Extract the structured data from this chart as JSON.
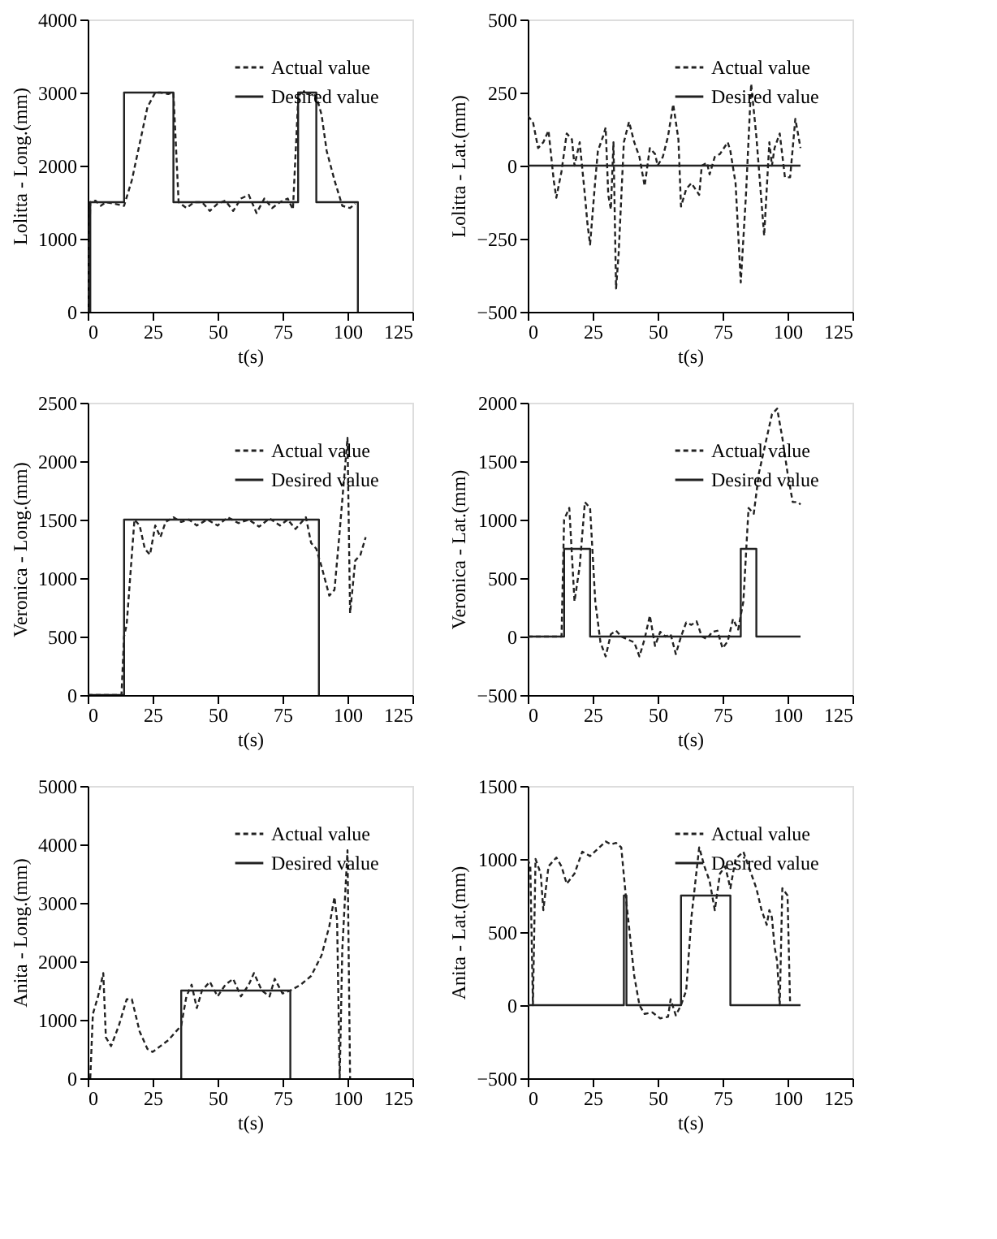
{
  "chart_data": [
    {
      "type": "line",
      "xlabel": "t(s)",
      "ylabel": "Lolitta - Long.(mm)",
      "xlim": [
        0,
        125
      ],
      "xticks": [
        0,
        25,
        50,
        75,
        100,
        125
      ],
      "ylim": [
        0,
        4000
      ],
      "yticks": [
        0,
        1000,
        2000,
        3000,
        4000
      ],
      "legend": "top right",
      "series": [
        {
          "name": "Actual value",
          "color": "#222222",
          "line_style": "dashed",
          "x": [
            0,
            1,
            3,
            5,
            7,
            10,
            14,
            17,
            20,
            23,
            26,
            28,
            31,
            33,
            35,
            38,
            41,
            44,
            47,
            50,
            53,
            56,
            59,
            62,
            65,
            68,
            71,
            74,
            77,
            79,
            81,
            82,
            84,
            86,
            88,
            90,
            92,
            95,
            98,
            101,
            103
          ],
          "values": [
            0,
            1500,
            1520,
            1450,
            1500,
            1480,
            1450,
            1800,
            2300,
            2800,
            3000,
            3000,
            2980,
            3000,
            1500,
            1420,
            1500,
            1500,
            1380,
            1480,
            1520,
            1380,
            1550,
            1600,
            1350,
            1550,
            1420,
            1500,
            1550,
            1400,
            2900,
            3000,
            2980,
            2990,
            2950,
            2700,
            2200,
            1800,
            1450,
            1420,
            1480
          ]
        },
        {
          "name": "Desired value",
          "color": "#222222",
          "line_style": "solid",
          "x": [
            1,
            1,
            14,
            14,
            33,
            33,
            81,
            81,
            88,
            88,
            104,
            104
          ],
          "values": [
            0,
            1500,
            1500,
            3000,
            3000,
            1500,
            1500,
            3000,
            3000,
            1500,
            1500,
            0
          ]
        }
      ]
    },
    {
      "type": "line",
      "xlabel": "t(s)",
      "ylabel": "Lolitta - Lat.(mm)",
      "xlim": [
        0,
        125
      ],
      "xticks": [
        0,
        25,
        50,
        75,
        100,
        125
      ],
      "ylim": [
        -500,
        500
      ],
      "yticks": [
        -500,
        -250,
        0,
        250,
        500
      ],
      "legend": "top right",
      "series": [
        {
          "name": "Actual value",
          "color": "#222222",
          "line_style": "dashed",
          "x": [
            0,
            2,
            4,
            6,
            8,
            10,
            11,
            13,
            15,
            17,
            18,
            20,
            22,
            23,
            24,
            26,
            27,
            29,
            30,
            31,
            32,
            33,
            34,
            35,
            37,
            39,
            41,
            43,
            45,
            47,
            49,
            50,
            52,
            54,
            56,
            58,
            59,
            61,
            63,
            66,
            67,
            69,
            70,
            72,
            74,
            77,
            78,
            80,
            82,
            84,
            86,
            88,
            91,
            93,
            94,
            95,
            97,
            99,
            101,
            103,
            105
          ],
          "values": [
            170,
            150,
            60,
            80,
            120,
            -50,
            -110,
            -20,
            110,
            90,
            0,
            80,
            -100,
            -200,
            -270,
            -50,
            50,
            100,
            130,
            -100,
            -150,
            80,
            -420,
            -300,
            80,
            150,
            80,
            30,
            -70,
            60,
            40,
            0,
            30,
            100,
            210,
            90,
            -140,
            -80,
            -60,
            -100,
            0,
            10,
            -30,
            30,
            40,
            80,
            50,
            -60,
            -400,
            -100,
            280,
            100,
            -240,
            80,
            0,
            60,
            110,
            -40,
            -40,
            160,
            60
          ]
        },
        {
          "name": "Desired value",
          "color": "#222222",
          "line_style": "solid",
          "x": [
            0,
            105
          ],
          "values": [
            0,
            0
          ]
        }
      ]
    },
    {
      "type": "line",
      "xlabel": "t(s)",
      "ylabel": "Veronica - Long.(mm)",
      "xlim": [
        0,
        125
      ],
      "xticks": [
        0,
        25,
        50,
        75,
        100,
        125
      ],
      "ylim": [
        0,
        2500
      ],
      "yticks": [
        0,
        500,
        1000,
        1500,
        2000,
        2500
      ],
      "legend": "top right",
      "series": [
        {
          "name": "Actual value",
          "color": "#222222",
          "line_style": "dashed",
          "x": [
            0,
            13,
            14,
            15,
            17,
            18,
            20,
            22,
            24,
            26,
            28,
            30,
            33,
            36,
            39,
            42,
            46,
            50,
            54,
            58,
            62,
            66,
            70,
            74,
            77,
            80,
            84,
            86,
            88,
            90,
            93,
            95,
            97,
            100,
            101,
            103,
            105,
            107
          ],
          "values": [
            0,
            0,
            500,
            600,
            1200,
            1500,
            1450,
            1250,
            1200,
            1450,
            1350,
            1480,
            1520,
            1480,
            1500,
            1450,
            1500,
            1450,
            1520,
            1470,
            1500,
            1440,
            1510,
            1450,
            1500,
            1420,
            1520,
            1300,
            1250,
            1100,
            850,
            900,
            1400,
            2200,
            700,
            1150,
            1200,
            1350
          ]
        },
        {
          "name": "Desired value",
          "color": "#222222",
          "line_style": "solid",
          "x": [
            0,
            14,
            14,
            89,
            89
          ],
          "values": [
            0,
            0,
            1500,
            1500,
            0
          ]
        }
      ]
    },
    {
      "type": "line",
      "xlabel": "t(s)",
      "ylabel": "Veronica - Lat.(mm)",
      "xlim": [
        0,
        125
      ],
      "xticks": [
        0,
        25,
        50,
        75,
        100,
        125
      ],
      "ylim": [
        -500,
        2000
      ],
      "yticks": [
        -500,
        0,
        500,
        1000,
        1500,
        2000
      ],
      "legend": "top right",
      "series": [
        {
          "name": "Actual value",
          "color": "#222222",
          "line_style": "dashed",
          "x": [
            0,
            13,
            14,
            16,
            18,
            20,
            22,
            24,
            26,
            28,
            30,
            32,
            34,
            36,
            38,
            41,
            43,
            45,
            47,
            49,
            51,
            53,
            55,
            57,
            59,
            61,
            63,
            65,
            67,
            69,
            71,
            73,
            75,
            77,
            79,
            81,
            83,
            85,
            87,
            89,
            91,
            94,
            96,
            98,
            100,
            102,
            104,
            105
          ],
          "values": [
            0,
            0,
            1000,
            1100,
            300,
            600,
            1150,
            1100,
            300,
            -50,
            -170,
            20,
            50,
            0,
            -20,
            -50,
            -170,
            -20,
            180,
            -80,
            40,
            0,
            20,
            -150,
            0,
            120,
            100,
            130,
            0,
            -20,
            40,
            50,
            -100,
            -40,
            150,
            60,
            300,
            1100,
            1050,
            1400,
            1600,
            1900,
            1950,
            1700,
            1400,
            1150,
            1150,
            1130
          ]
        },
        {
          "name": "Desired value",
          "color": "#222222",
          "line_style": "solid",
          "x": [
            0,
            14,
            14,
            24,
            24,
            82,
            82,
            88,
            88,
            105
          ],
          "values": [
            0,
            0,
            750,
            750,
            0,
            0,
            750,
            750,
            0,
            0
          ]
        }
      ]
    },
    {
      "type": "line",
      "xlabel": "t(s)",
      "ylabel": "Anita - Long.(mm)",
      "xlim": [
        0,
        125
      ],
      "xticks": [
        0,
        25,
        50,
        75,
        100,
        125
      ],
      "ylim": [
        0,
        5000
      ],
      "yticks": [
        0,
        1000,
        2000,
        3000,
        4000,
        5000
      ],
      "legend": "top right",
      "series": [
        {
          "name": "Actual value",
          "color": "#222222",
          "line_style": "dashed",
          "x": [
            1,
            2,
            4,
            6,
            7,
            9,
            12,
            15,
            17,
            20,
            23,
            25,
            28,
            31,
            34,
            36,
            38,
            40,
            42,
            44,
            47,
            50,
            53,
            56,
            59,
            62,
            64,
            67,
            70,
            72,
            75,
            78,
            82,
            86,
            90,
            93,
            95,
            96,
            97,
            98,
            100,
            101
          ],
          "values": [
            0,
            1100,
            1400,
            1800,
            700,
            550,
            900,
            1350,
            1350,
            800,
            500,
            450,
            550,
            650,
            800,
            900,
            1400,
            1600,
            1200,
            1500,
            1650,
            1400,
            1600,
            1700,
            1400,
            1600,
            1800,
            1500,
            1400,
            1700,
            1450,
            1500,
            1600,
            1750,
            2100,
            2600,
            3100,
            2700,
            0,
            2200,
            3900,
            0
          ]
        },
        {
          "name": "Desired value",
          "color": "#222222",
          "line_style": "solid",
          "x": [
            36,
            36,
            78,
            78
          ],
          "values": [
            0,
            1500,
            1500,
            0
          ]
        }
      ]
    },
    {
      "type": "line",
      "xlabel": "t(s)",
      "ylabel": "Anita - Lat.(mm)",
      "xlim": [
        0,
        125
      ],
      "xticks": [
        0,
        25,
        50,
        75,
        100,
        125
      ],
      "ylim": [
        -500,
        1500
      ],
      "yticks": [
        -500,
        0,
        500,
        1000,
        1500
      ],
      "legend": "top right",
      "series": [
        {
          "name": "Actual value",
          "color": "#222222",
          "line_style": "dashed",
          "x": [
            0,
            1,
            2,
            3,
            5,
            6,
            8,
            11,
            13,
            15,
            18,
            21,
            24,
            27,
            30,
            32,
            34,
            36,
            38,
            41,
            43,
            45,
            48,
            51,
            54,
            55,
            57,
            59,
            61,
            63,
            66,
            68,
            70,
            72,
            74,
            76,
            78,
            80,
            83,
            86,
            88,
            90,
            92,
            93,
            94,
            95,
            96,
            97,
            98,
            100,
            101
          ],
          "values": [
            1000,
            950,
            0,
            1000,
            900,
            650,
            950,
            1010,
            950,
            830,
            900,
            1050,
            1020,
            1070,
            1120,
            1100,
            1110,
            1080,
            700,
            200,
            0,
            -60,
            -50,
            -90,
            -80,
            40,
            -70,
            0,
            100,
            600,
            1080,
            950,
            850,
            650,
            900,
            950,
            800,
            1000,
            1050,
            900,
            800,
            650,
            550,
            650,
            600,
            400,
            300,
            0,
            800,
            750,
            0
          ]
        },
        {
          "name": "Desired value",
          "color": "#222222",
          "line_style": "solid",
          "x": [
            0,
            37,
            37,
            38,
            38,
            59,
            59,
            78,
            78,
            105
          ],
          "values": [
            0,
            0,
            750,
            750,
            0,
            0,
            750,
            750,
            0,
            0
          ]
        }
      ]
    }
  ]
}
